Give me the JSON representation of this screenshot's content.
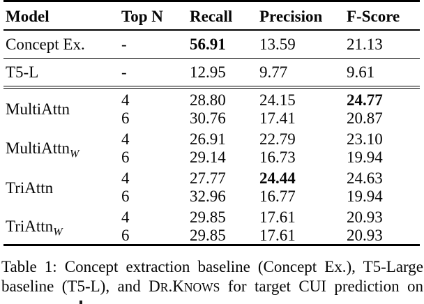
{
  "page": {
    "background": "#ffffff",
    "ink": "#000000"
  },
  "chart_data": {
    "type": "table",
    "title": "Table 1",
    "columns": [
      "Model",
      "Top N",
      "Recall",
      "Precision",
      "F-Score"
    ],
    "rows": [
      [
        "Concept Ex.",
        "-",
        56.91,
        13.59,
        21.13
      ],
      [
        "T5-L",
        "-",
        12.95,
        9.77,
        9.61
      ],
      [
        "MultiAttn",
        4,
        28.8,
        24.15,
        24.77
      ],
      [
        "MultiAttn",
        6,
        30.76,
        17.41,
        20.87
      ],
      [
        "MultiAttnW",
        4,
        26.91,
        22.79,
        23.1
      ],
      [
        "MultiAttnW",
        6,
        29.14,
        16.73,
        19.94
      ],
      [
        "TriAttn",
        4,
        27.77,
        24.44,
        24.63
      ],
      [
        "TriAttn",
        6,
        32.96,
        16.77,
        19.94
      ],
      [
        "TriAttnW",
        4,
        29.85,
        17.61,
        20.93
      ],
      [
        "TriAttnW",
        6,
        29.85,
        17.61,
        20.93
      ]
    ],
    "bold_values": [
      "Recall 56.91 (Concept Ex.)",
      "F-Score 24.77 (MultiAttn, Top N 4)",
      "Precision 24.44 (TriAttn, Top N 4)"
    ]
  },
  "table": {
    "columns": [
      "Model",
      "Top N",
      "Recall",
      "Precision",
      "F-Score"
    ],
    "baselines": [
      {
        "model": "Concept Ex.",
        "top_n": "-",
        "recall": "56.91",
        "precision": "13.59",
        "f_score": "21.13"
      },
      {
        "model": "T5-L",
        "top_n": "-",
        "recall": "12.95",
        "precision": "9.77",
        "f_score": "9.61"
      }
    ],
    "groups": [
      {
        "model": "MultiAttn",
        "subscript": "",
        "rows": [
          {
            "top_n": "4",
            "recall": "28.80",
            "precision": "24.15",
            "f_score": "24.77"
          },
          {
            "top_n": "6",
            "recall": "30.76",
            "precision": "17.41",
            "f_score": "20.87"
          }
        ]
      },
      {
        "model": "MultiAttn",
        "subscript": "W",
        "rows": [
          {
            "top_n": "4",
            "recall": "26.91",
            "precision": "22.79",
            "f_score": "23.10"
          },
          {
            "top_n": "6",
            "recall": "29.14",
            "precision": "16.73",
            "f_score": "19.94"
          }
        ]
      },
      {
        "model": "TriAttn",
        "subscript": "",
        "rows": [
          {
            "top_n": "4",
            "recall": "27.77",
            "precision": "24.44",
            "f_score": "24.63"
          },
          {
            "top_n": "6",
            "recall": "32.96",
            "precision": "16.77",
            "f_score": "19.94"
          }
        ]
      },
      {
        "model": "TriAttn",
        "subscript": "W",
        "rows": [
          {
            "top_n": "4",
            "recall": "29.85",
            "precision": "17.61",
            "f_score": "20.93"
          },
          {
            "top_n": "6",
            "recall": "29.85",
            "precision": "17.61",
            "f_score": "20.93"
          }
        ]
      }
    ]
  },
  "caption": {
    "line1": "Table 1: Concept extraction baseline (Concept Ex.), T5-Large",
    "line2_before": "baseline (T5-L), and ",
    "brand_d": "D",
    "brand_r": "R",
    "brand_dot": ".",
    "brand_k": "K",
    "brand_nows": "NOWS",
    "line2_after": " for target CUI prediction on"
  }
}
